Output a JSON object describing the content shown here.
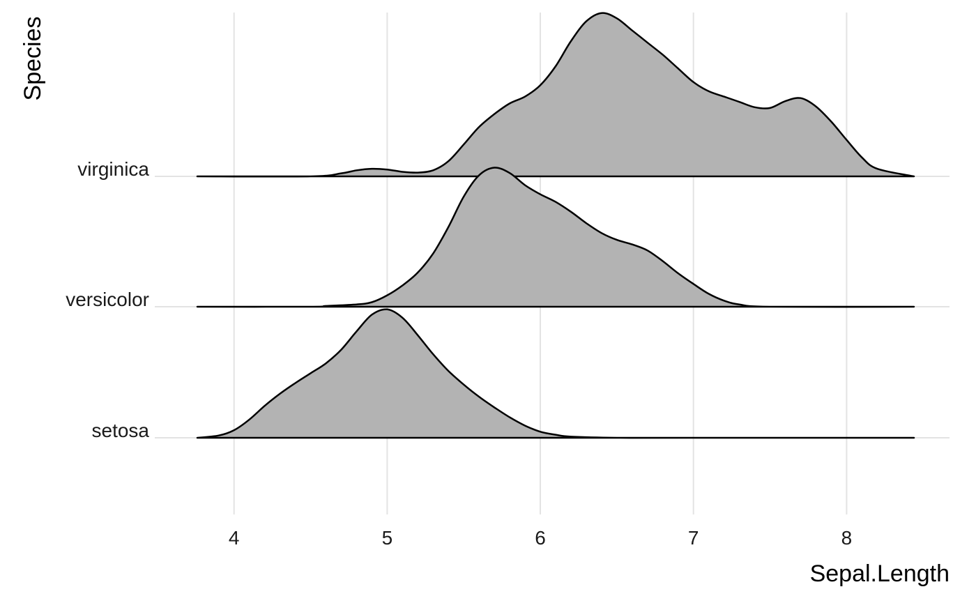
{
  "chart_data": {
    "type": "ridgeline",
    "xlabel": "Sepal.Length",
    "ylabel": "Species",
    "xlim": [
      3.76,
      8.44
    ],
    "x_ticks": [
      4,
      5,
      6,
      7,
      8
    ],
    "categories": [
      "setosa",
      "versicolor",
      "virginica"
    ],
    "grid": true,
    "fill_color": "#b3b3b3",
    "line_color": "#000000",
    "series": [
      {
        "name": "setosa",
        "x": [
          3.76,
          3.9,
          4.0,
          4.1,
          4.2,
          4.3,
          4.4,
          4.5,
          4.6,
          4.7,
          4.8,
          4.9,
          5.0,
          5.1,
          5.2,
          5.3,
          5.4,
          5.5,
          5.6,
          5.7,
          5.8,
          5.9,
          6.0,
          6.1,
          6.2,
          6.5,
          7.0,
          8.44
        ],
        "density": [
          0.0,
          0.03,
          0.1,
          0.24,
          0.42,
          0.58,
          0.72,
          0.85,
          0.98,
          1.16,
          1.4,
          1.62,
          1.69,
          1.58,
          1.35,
          1.1,
          0.88,
          0.7,
          0.54,
          0.4,
          0.27,
          0.16,
          0.08,
          0.04,
          0.015,
          0.0,
          0.0,
          0.0
        ]
      },
      {
        "name": "versicolor",
        "x": [
          3.76,
          4.5,
          4.6,
          4.8,
          4.9,
          5.0,
          5.1,
          5.2,
          5.3,
          5.4,
          5.5,
          5.6,
          5.7,
          5.8,
          5.9,
          6.0,
          6.1,
          6.2,
          6.3,
          6.4,
          6.5,
          6.6,
          6.7,
          6.8,
          6.9,
          7.0,
          7.1,
          7.2,
          7.3,
          7.5,
          8.44
        ],
        "density": [
          0.0,
          0.0,
          0.01,
          0.03,
          0.06,
          0.15,
          0.28,
          0.45,
          0.7,
          1.05,
          1.45,
          1.73,
          1.83,
          1.76,
          1.6,
          1.48,
          1.38,
          1.25,
          1.1,
          0.97,
          0.88,
          0.82,
          0.74,
          0.6,
          0.44,
          0.3,
          0.17,
          0.08,
          0.03,
          0.0,
          0.0
        ]
      },
      {
        "name": "virginica",
        "x": [
          3.76,
          4.5,
          4.7,
          4.8,
          4.9,
          5.0,
          5.1,
          5.2,
          5.3,
          5.4,
          5.5,
          5.6,
          5.7,
          5.8,
          5.9,
          6.0,
          6.1,
          6.2,
          6.3,
          6.4,
          6.5,
          6.6,
          6.7,
          6.8,
          6.9,
          7.0,
          7.1,
          7.2,
          7.3,
          7.4,
          7.5,
          7.6,
          7.7,
          7.8,
          7.9,
          8.0,
          8.1,
          8.2,
          8.44
        ],
        "density": [
          0.0,
          0.0,
          0.04,
          0.08,
          0.1,
          0.09,
          0.06,
          0.05,
          0.08,
          0.2,
          0.42,
          0.65,
          0.82,
          0.96,
          1.05,
          1.2,
          1.45,
          1.78,
          2.04,
          2.15,
          2.08,
          1.92,
          1.76,
          1.6,
          1.42,
          1.24,
          1.12,
          1.05,
          0.98,
          0.91,
          0.9,
          0.99,
          1.03,
          0.92,
          0.72,
          0.48,
          0.25,
          0.1,
          0.0
        ]
      }
    ]
  }
}
